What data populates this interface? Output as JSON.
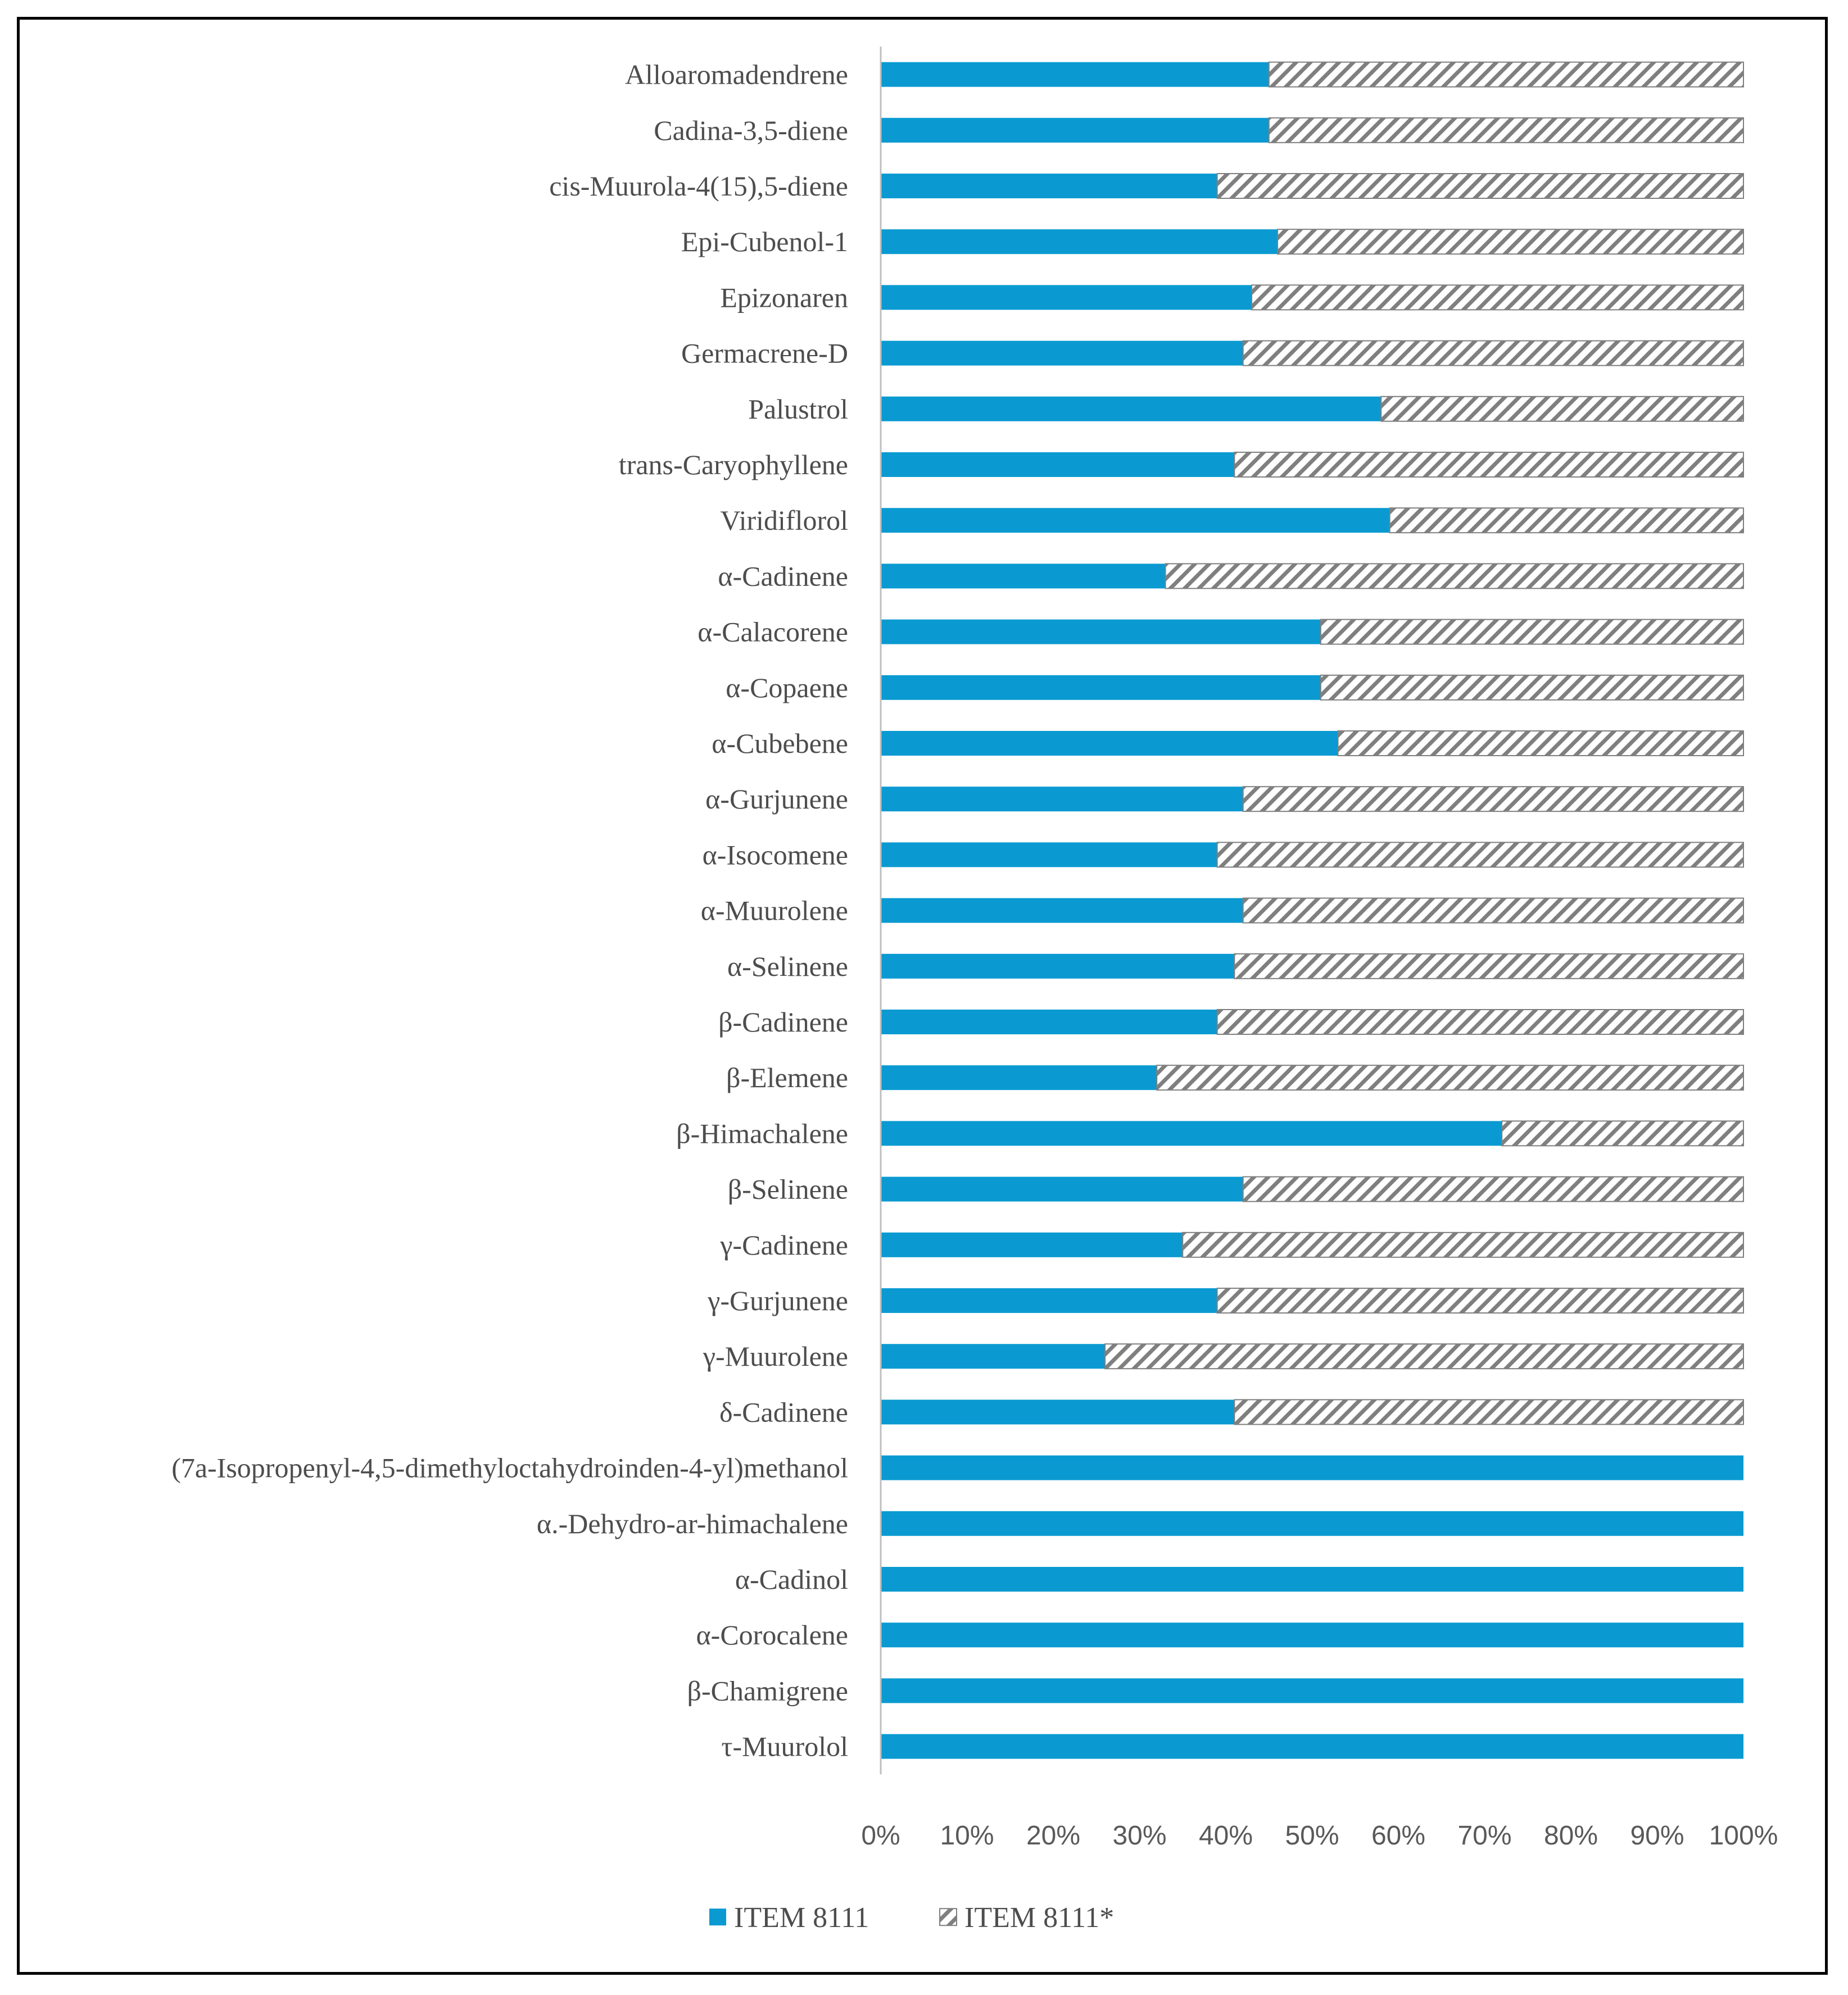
{
  "chart_data": {
    "type": "bar",
    "orientation": "horizontal",
    "stacked": "percent",
    "title": "",
    "xlabel": "",
    "ylabel": "",
    "xlim": [
      0,
      100
    ],
    "x_ticks": [
      "0%",
      "10%",
      "20%",
      "30%",
      "40%",
      "50%",
      "60%",
      "70%",
      "80%",
      "90%",
      "100%"
    ],
    "grid": false,
    "legend_position": "bottom",
    "categories": [
      "Alloaromadendrene",
      "Cadina-3,5-diene",
      "cis-Muurola-4(15),5-diene",
      "Epi-Cubenol-1",
      "Epizonaren",
      "Germacrene-D",
      "Palustrol",
      "trans-Caryophyllene",
      "Viridiflorol",
      "α-Cadinene",
      "α-Calacorene",
      "α-Copaene",
      "α-Cubebene",
      "α-Gurjunene",
      "α-Isocomene",
      "α-Muurolene",
      "α-Selinene",
      "β-Cadinene",
      "β-Elemene",
      "β-Himachalene",
      "β-Selinene",
      "γ-Cadinene",
      "γ-Gurjunene",
      "γ-Muurolene",
      "δ-Cadinene",
      "(7a-Isopropenyl-4,5-dimethyloctahydroinden-4-yl)methanol",
      "α.-Dehydro-ar-himachalene",
      "α-Cadinol",
      "α-Corocalene",
      "β-Chamigrene",
      "τ-Muurolol"
    ],
    "series": [
      {
        "name": "ITEM 8111",
        "color": "#0a9ad1",
        "pattern": "solid",
        "values": [
          45,
          45,
          39,
          46,
          43,
          42,
          58,
          41,
          59,
          33,
          51,
          51,
          53,
          42,
          39,
          42,
          41,
          39,
          32,
          72,
          42,
          35,
          39,
          26,
          41,
          100,
          100,
          100,
          100,
          100,
          100
        ]
      },
      {
        "name": "ITEM 8111*",
        "color": "#7f7f7f",
        "pattern": "diagonal-hatch",
        "values": [
          55,
          55,
          61,
          54,
          57,
          58,
          42,
          59,
          41,
          67,
          49,
          49,
          47,
          58,
          61,
          58,
          59,
          61,
          68,
          28,
          58,
          65,
          61,
          74,
          59,
          0,
          0,
          0,
          0,
          0,
          0
        ]
      }
    ]
  }
}
